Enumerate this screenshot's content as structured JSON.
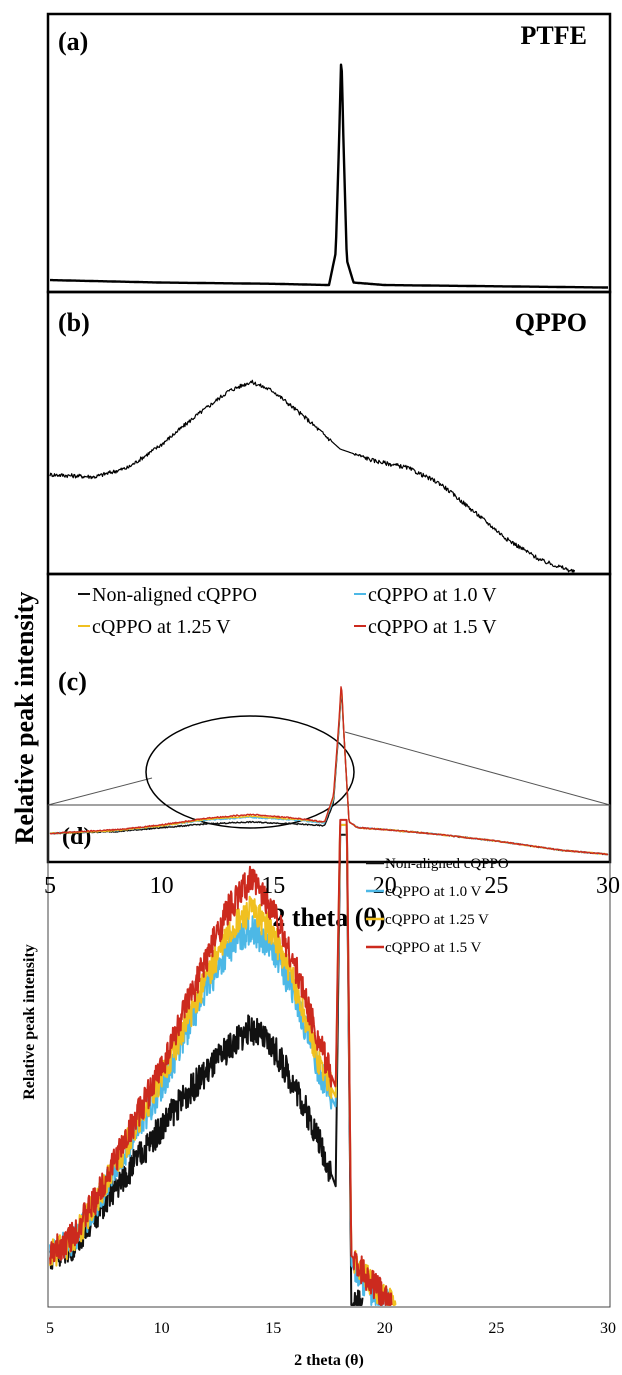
{
  "ylabel_top": "Relative peak intensity",
  "xlabel_top": "2 theta (θ)",
  "xlabel_zoom": "2 theta (θ)",
  "ylabel_zoom": "Relative peak intensity",
  "chart_data": [
    {
      "panel": "(a)",
      "type": "line",
      "title": "PTFE",
      "xlim": [
        5,
        30
      ],
      "series": [
        {
          "color": "#000000",
          "points": [
            [
              5,
              0.04
            ],
            [
              10,
              0.03
            ],
            [
              15,
              0.025
            ],
            [
              17.5,
              0.02
            ],
            [
              17.8,
              0.15
            ],
            [
              17.95,
              0.6
            ],
            [
              18.05,
              0.96
            ],
            [
              18.15,
              0.6
            ],
            [
              18.3,
              0.12
            ],
            [
              18.6,
              0.03
            ],
            [
              20,
              0.02
            ],
            [
              25,
              0.015
            ],
            [
              30,
              0.01
            ]
          ]
        }
      ]
    },
    {
      "panel": "(b)",
      "type": "line",
      "title": "QPPO",
      "xlim": [
        5,
        30
      ],
      "series": [
        {
          "color": "#000000",
          "points": [
            [
              5,
              0.42
            ],
            [
              7,
              0.41
            ],
            [
              8.5,
              0.45
            ],
            [
              10,
              0.55
            ],
            [
              11.5,
              0.67
            ],
            [
              13,
              0.78
            ],
            [
              14,
              0.82
            ],
            [
              15,
              0.78
            ],
            [
              16.5,
              0.66
            ],
            [
              18,
              0.53
            ],
            [
              19.5,
              0.48
            ],
            [
              21,
              0.45
            ],
            [
              22.5,
              0.38
            ],
            [
              24,
              0.26
            ],
            [
              25.5,
              0.14
            ],
            [
              27,
              0.05
            ],
            [
              28.5,
              0.0
            ]
          ]
        }
      ]
    },
    {
      "panel": "(c)",
      "type": "line",
      "xlim": [
        5,
        30
      ],
      "xticks": [
        5,
        10,
        15,
        20,
        25,
        30
      ],
      "legend": [
        "Non-aligned cQPPO",
        "cQPPO at 1.0 V",
        "cQPPO at 1.25 V",
        "cQPPO at 1.5 V"
      ],
      "series": [
        {
          "name": "Non-aligned cQPPO",
          "color": "#111111",
          "points": [
            [
              5,
              0.14
            ],
            [
              8,
              0.15
            ],
            [
              10,
              0.17
            ],
            [
              12,
              0.19
            ],
            [
              14,
              0.2
            ],
            [
              16,
              0.19
            ],
            [
              17.3,
              0.18
            ],
            [
              17.7,
              0.3
            ],
            [
              17.95,
              0.7
            ],
            [
              18.05,
              0.9
            ],
            [
              18.2,
              0.6
            ],
            [
              18.4,
              0.2
            ],
            [
              18.8,
              0.17
            ],
            [
              20,
              0.16
            ],
            [
              22,
              0.14
            ],
            [
              25,
              0.1
            ],
            [
              28,
              0.05
            ],
            [
              30,
              0.03
            ]
          ]
        },
        {
          "name": "cQPPO at 1.0 V",
          "color": "#4db8e6",
          "points": [
            [
              5,
              0.14
            ],
            [
              8,
              0.155
            ],
            [
              10,
              0.18
            ],
            [
              12,
              0.21
            ],
            [
              14,
              0.225
            ],
            [
              16,
              0.21
            ],
            [
              17.3,
              0.195
            ],
            [
              17.7,
              0.32
            ],
            [
              17.95,
              0.72
            ],
            [
              18.05,
              0.92
            ],
            [
              18.2,
              0.6
            ],
            [
              18.4,
              0.2
            ],
            [
              18.8,
              0.17
            ],
            [
              20,
              0.16
            ],
            [
              22,
              0.14
            ],
            [
              25,
              0.1
            ],
            [
              28,
              0.05
            ],
            [
              30,
              0.03
            ]
          ]
        },
        {
          "name": "cQPPO at 1.25 V",
          "color": "#f0c020",
          "points": [
            [
              5,
              0.14
            ],
            [
              8,
              0.155
            ],
            [
              10,
              0.18
            ],
            [
              12,
              0.215
            ],
            [
              14,
              0.23
            ],
            [
              16,
              0.215
            ],
            [
              17.3,
              0.2
            ],
            [
              17.7,
              0.33
            ],
            [
              17.95,
              0.73
            ],
            [
              18.05,
              0.93
            ],
            [
              18.2,
              0.6
            ],
            [
              18.4,
              0.2
            ],
            [
              18.8,
              0.17
            ],
            [
              20,
              0.16
            ],
            [
              22,
              0.14
            ],
            [
              25,
              0.1
            ],
            [
              28,
              0.05
            ],
            [
              30,
              0.03
            ]
          ]
        },
        {
          "name": "cQPPO at 1.5 V",
          "color": "#cc2a1e",
          "points": [
            [
              5,
              0.14
            ],
            [
              8,
              0.16
            ],
            [
              10,
              0.185
            ],
            [
              12,
              0.22
            ],
            [
              14,
              0.24
            ],
            [
              16,
              0.22
            ],
            [
              17.3,
              0.2
            ],
            [
              17.7,
              0.34
            ],
            [
              17.95,
              0.74
            ],
            [
              18.05,
              0.94
            ],
            [
              18.2,
              0.6
            ],
            [
              18.4,
              0.2
            ],
            [
              18.8,
              0.17
            ],
            [
              20,
              0.16
            ],
            [
              22,
              0.14
            ],
            [
              25,
              0.1
            ],
            [
              28,
              0.05
            ],
            [
              30,
              0.03
            ]
          ]
        }
      ]
    },
    {
      "panel": "(d)",
      "type": "line",
      "xlim": [
        5,
        30
      ],
      "xticks": [
        5,
        10,
        15,
        20,
        25,
        30
      ],
      "legend": [
        "Non-aligned cQPPO",
        "cQPPO at 1.0 V",
        "cQPPO at 1.25 V",
        "cQPPO at 1.5 V"
      ],
      "series": [
        {
          "name": "Non-aligned cQPPO",
          "color": "#111111",
          "points": [
            [
              5,
              0.1
            ],
            [
              6,
              0.12
            ],
            [
              7,
              0.18
            ],
            [
              8,
              0.24
            ],
            [
              9,
              0.3
            ],
            [
              10,
              0.36
            ],
            [
              11,
              0.42
            ],
            [
              12,
              0.47
            ],
            [
              13,
              0.52
            ],
            [
              14,
              0.56
            ],
            [
              15,
              0.52
            ],
            [
              16,
              0.44
            ],
            [
              17,
              0.34
            ],
            [
              17.8,
              0.24
            ],
            [
              18.0,
              0.95
            ],
            [
              18.3,
              0.95
            ],
            [
              18.5,
              0.0
            ],
            [
              19.0,
              0.0
            ]
          ]
        },
        {
          "name": "cQPPO at 1.0 V",
          "color": "#4db8e6",
          "points": [
            [
              5,
              0.1
            ],
            [
              6,
              0.13
            ],
            [
              7,
              0.2
            ],
            [
              8,
              0.28
            ],
            [
              9,
              0.36
            ],
            [
              10,
              0.44
            ],
            [
              11,
              0.54
            ],
            [
              12,
              0.64
            ],
            [
              13,
              0.72
            ],
            [
              14,
              0.76
            ],
            [
              15,
              0.72
            ],
            [
              16,
              0.62
            ],
            [
              17,
              0.48
            ],
            [
              17.8,
              0.4
            ],
            [
              18.0,
              0.97
            ],
            [
              18.3,
              0.97
            ],
            [
              18.5,
              0.08
            ],
            [
              19.5,
              0.02
            ],
            [
              20.2,
              0.0
            ]
          ]
        },
        {
          "name": "cQPPO at 1.25 V",
          "color": "#f0c020",
          "points": [
            [
              5,
              0.1
            ],
            [
              6,
              0.13
            ],
            [
              7,
              0.2
            ],
            [
              8,
              0.29
            ],
            [
              9,
              0.37
            ],
            [
              10,
              0.46
            ],
            [
              11,
              0.56
            ],
            [
              12,
              0.66
            ],
            [
              13,
              0.75
            ],
            [
              14,
              0.8
            ],
            [
              15,
              0.75
            ],
            [
              16,
              0.64
            ],
            [
              17,
              0.5
            ],
            [
              17.8,
              0.42
            ],
            [
              18.0,
              0.97
            ],
            [
              18.3,
              0.97
            ],
            [
              18.5,
              0.1
            ],
            [
              19.5,
              0.04
            ],
            [
              20.5,
              0.0
            ]
          ]
        },
        {
          "name": "cQPPO at 1.5 V",
          "color": "#cc2a1e",
          "points": [
            [
              5,
              0.1
            ],
            [
              6,
              0.14
            ],
            [
              7,
              0.21
            ],
            [
              8,
              0.3
            ],
            [
              9,
              0.39
            ],
            [
              10,
              0.48
            ],
            [
              11,
              0.59
            ],
            [
              12,
              0.7
            ],
            [
              13,
              0.8
            ],
            [
              14,
              0.86
            ],
            [
              15,
              0.8
            ],
            [
              16,
              0.68
            ],
            [
              17,
              0.54
            ],
            [
              17.8,
              0.44
            ],
            [
              18.0,
              0.98
            ],
            [
              18.3,
              0.98
            ],
            [
              18.5,
              0.1
            ],
            [
              19.5,
              0.04
            ],
            [
              20.3,
              0.0
            ]
          ]
        }
      ]
    }
  ]
}
